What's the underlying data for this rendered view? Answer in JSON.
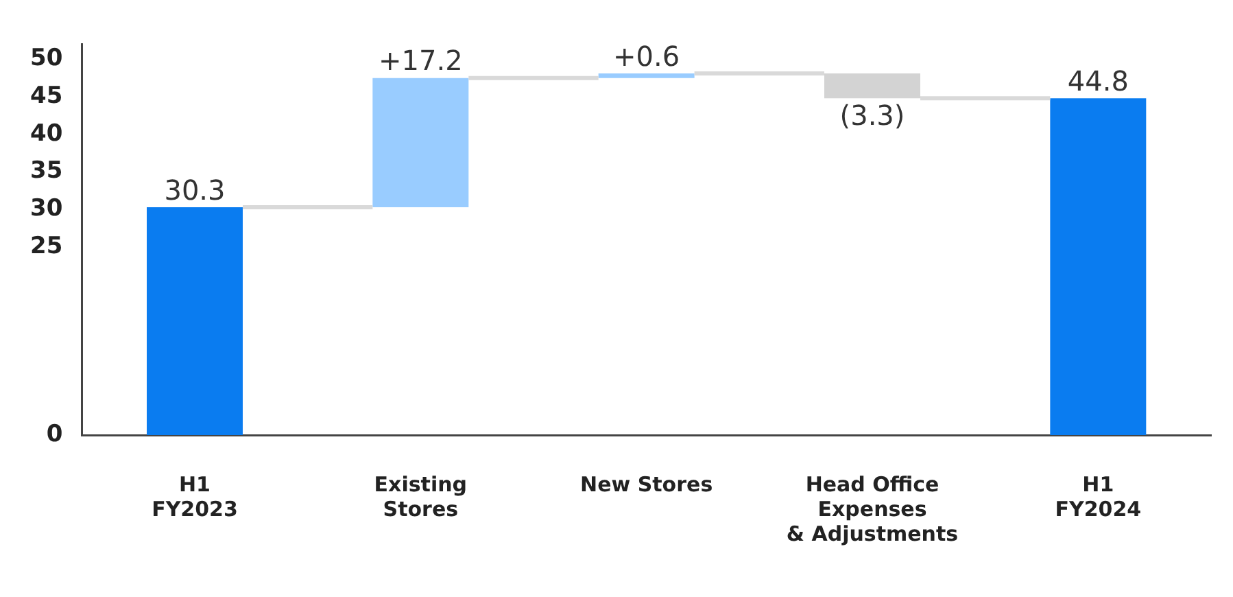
{
  "chart_data": {
    "type": "bar",
    "categories": [
      "H1\nFY2023",
      "Existing\nStores",
      "New Stores",
      "Head Office\nExpenses\n& Adjustments",
      "H1\nFY2024"
    ],
    "values": [
      30.3,
      17.2,
      0.6,
      -3.3,
      44.8
    ],
    "base": [
      0,
      30.3,
      47.5,
      48.1,
      0
    ],
    "colors": [
      "#0a7cf0",
      "#99ccff",
      "#99ccff",
      "#d3d3d3",
      "#0a7cf0"
    ],
    "value_labels": [
      "30.3",
      "+17.2",
      "+0.6",
      "(3.3)",
      "44.8"
    ],
    "ylim": [
      0,
      52
    ],
    "yticks": [
      0,
      25,
      30,
      35,
      40,
      45,
      50
    ],
    "grid": false,
    "legend": false
  }
}
